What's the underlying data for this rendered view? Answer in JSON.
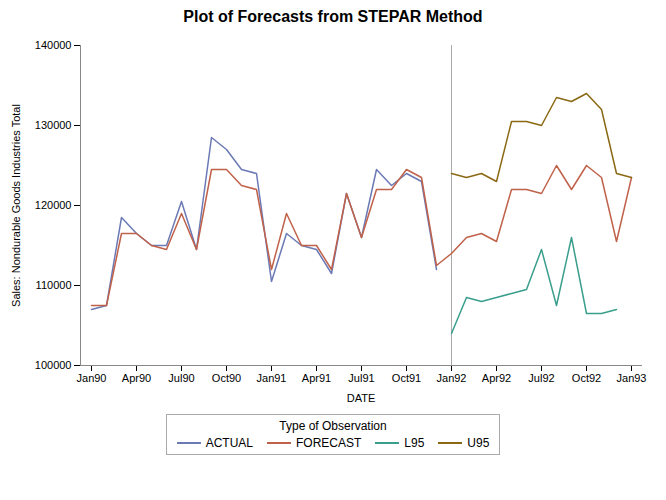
{
  "chart_data": {
    "type": "line",
    "title": "Plot of Forecasts from STEPAR Method",
    "xlabel": "DATE",
    "ylabel": "Sales: Nondurable Goods Industries Total",
    "categories": [
      "Jan90",
      null,
      null,
      "Apr90",
      null,
      null,
      "Jul90",
      null,
      null,
      "Oct90",
      null,
      null,
      "Jan91",
      null,
      null,
      "Apr91",
      null,
      null,
      "Jul91",
      null,
      null,
      "Oct91",
      null,
      null,
      "Jan92",
      null,
      null,
      "Apr92",
      null,
      null,
      "Jul92",
      null,
      null,
      "Oct92",
      null,
      null,
      "Jan93"
    ],
    "series": [
      {
        "name": "ACTUAL",
        "color": "#6b7ab5",
        "values": [
          107000,
          107500,
          118500,
          116500,
          115000,
          115000,
          120500,
          114500,
          128500,
          127000,
          124500,
          124000,
          110500,
          116500,
          115000,
          114500,
          111500,
          121500,
          116000,
          124500,
          122500,
          124000,
          123000,
          112000,
          null,
          null,
          null,
          null,
          null,
          null,
          null,
          null,
          null,
          null,
          null,
          null,
          null
        ]
      },
      {
        "name": "FORECAST",
        "color": "#c0614a",
        "values": [
          107500,
          107500,
          116500,
          116500,
          115000,
          114500,
          119000,
          114500,
          124500,
          124500,
          122500,
          122000,
          112000,
          119000,
          115000,
          115000,
          112000,
          121500,
          116000,
          122000,
          122000,
          124500,
          123500,
          112500,
          114000,
          116000,
          116500,
          115500,
          122000,
          122000,
          121500,
          125000,
          122000,
          125000,
          123500,
          115500,
          123500
        ]
      },
      {
        "name": "L95",
        "color": "#3a9e8c",
        "values": [
          null,
          null,
          null,
          null,
          null,
          null,
          null,
          null,
          null,
          null,
          null,
          null,
          null,
          null,
          null,
          null,
          null,
          null,
          null,
          null,
          null,
          null,
          null,
          null,
          104000,
          108500,
          108000,
          108500,
          109000,
          109500,
          114500,
          107500,
          116000,
          106500,
          106500,
          107000,
          null
        ]
      },
      {
        "name": "U95",
        "color": "#8b6914",
        "values": [
          null,
          null,
          null,
          null,
          null,
          null,
          null,
          null,
          null,
          null,
          null,
          null,
          null,
          null,
          null,
          null,
          null,
          null,
          null,
          null,
          null,
          null,
          null,
          null,
          124000,
          123500,
          124000,
          123000,
          130500,
          130500,
          130000,
          133500,
          133000,
          134000,
          132000,
          124000,
          123500
        ]
      }
    ],
    "vline": "Jan92",
    "ylim": [
      100000,
      140000
    ],
    "yticks": [
      100000,
      110000,
      120000,
      130000,
      140000
    ],
    "legend_title": "Type of Observation",
    "legend": "bottom",
    "grid": false
  }
}
